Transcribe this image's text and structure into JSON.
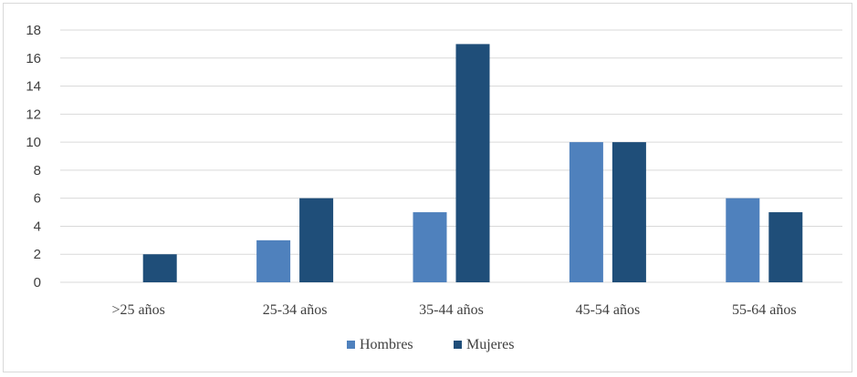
{
  "chart_data": {
    "type": "bar",
    "categories": [
      ">25 años",
      "25-34 años",
      "35-44 años",
      "45-54 años",
      "55-64 años"
    ],
    "series": [
      {
        "name": "Hombres",
        "values": [
          0,
          3,
          5,
          10,
          6
        ],
        "color": "#4f81bd"
      },
      {
        "name": "Mujeres",
        "values": [
          2,
          6,
          17,
          10,
          5
        ],
        "color": "#1f4e79"
      }
    ],
    "yticks": [
      0,
      2,
      4,
      6,
      8,
      10,
      12,
      14,
      16,
      18
    ],
    "ylim": [
      0,
      18
    ],
    "grid": true,
    "legend": "bottom"
  }
}
